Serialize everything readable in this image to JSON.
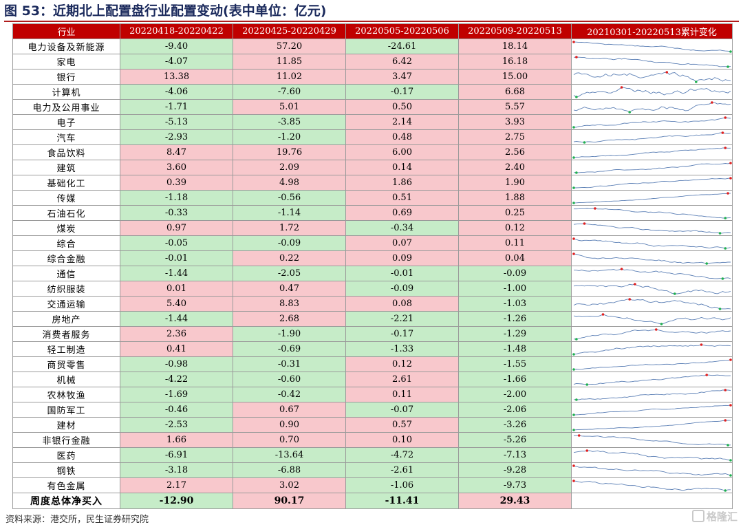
{
  "title": "图 53：近期北上配置盘行业配置变动(表中单位：亿元)",
  "headers": [
    "行业",
    "20220418-20220422",
    "20220425-20220429",
    "20220505-20220506",
    "20220509-20220513",
    "20210301-20220513累计变化"
  ],
  "rows": [
    {
      "name": "电力设备及新能源",
      "values": [
        -9.4,
        57.2,
        -24.61,
        18.14
      ],
      "text": [
        "-9.40",
        "57.20",
        "-24.61",
        "18.14"
      ]
    },
    {
      "name": "家电",
      "values": [
        -4.07,
        11.85,
        6.42,
        16.18
      ],
      "text": [
        "-4.07",
        "11.85",
        "6.42",
        "16.18"
      ]
    },
    {
      "name": "银行",
      "values": [
        13.38,
        11.02,
        3.47,
        15.0
      ],
      "text": [
        "13.38",
        "11.02",
        "3.47",
        "15.00"
      ]
    },
    {
      "name": "计算机",
      "values": [
        -4.06,
        -7.6,
        -0.17,
        6.68
      ],
      "text": [
        "-4.06",
        "-7.60",
        "-0.17",
        "6.68"
      ]
    },
    {
      "name": "电力及公用事业",
      "values": [
        -1.71,
        5.01,
        0.5,
        5.57
      ],
      "text": [
        "-1.71",
        "5.01",
        "0.50",
        "5.57"
      ]
    },
    {
      "name": "电子",
      "values": [
        -5.13,
        -3.85,
        2.14,
        3.93
      ],
      "text": [
        "-5.13",
        "-3.85",
        "2.14",
        "3.93"
      ]
    },
    {
      "name": "汽车",
      "values": [
        -2.93,
        -1.2,
        0.48,
        2.75
      ],
      "text": [
        "-2.93",
        "-1.20",
        "0.48",
        "2.75"
      ]
    },
    {
      "name": "食品饮料",
      "values": [
        8.47,
        19.76,
        6.0,
        2.56
      ],
      "text": [
        "8.47",
        "19.76",
        "6.00",
        "2.56"
      ]
    },
    {
      "name": "建筑",
      "values": [
        3.6,
        2.09,
        0.14,
        2.4
      ],
      "text": [
        "3.60",
        "2.09",
        "0.14",
        "2.40"
      ]
    },
    {
      "name": "基础化工",
      "values": [
        0.39,
        4.98,
        1.86,
        1.9
      ],
      "text": [
        "0.39",
        "4.98",
        "1.86",
        "1.90"
      ]
    },
    {
      "name": "传媒",
      "values": [
        -1.18,
        -0.56,
        0.51,
        1.88
      ],
      "text": [
        "-1.18",
        "-0.56",
        "0.51",
        "1.88"
      ]
    },
    {
      "name": "石油石化",
      "values": [
        -0.33,
        -1.14,
        0.69,
        0.25
      ],
      "text": [
        "-0.33",
        "-1.14",
        "0.69",
        "0.25"
      ]
    },
    {
      "name": "煤炭",
      "values": [
        0.97,
        1.72,
        -0.34,
        0.12
      ],
      "text": [
        "0.97",
        "1.72",
        "-0.34",
        "0.12"
      ]
    },
    {
      "name": "综合",
      "values": [
        -0.05,
        -0.09,
        0.07,
        0.11
      ],
      "text": [
        "-0.05",
        "-0.09",
        "0.07",
        "0.11"
      ]
    },
    {
      "name": "综合金融",
      "values": [
        -0.01,
        0.22,
        0.09,
        0.04
      ],
      "text": [
        "-0.01",
        "0.22",
        "0.09",
        "0.04"
      ]
    },
    {
      "name": "通信",
      "values": [
        -1.44,
        -2.05,
        -0.01,
        -0.09
      ],
      "text": [
        "-1.44",
        "-2.05",
        "-0.01",
        "-0.09"
      ]
    },
    {
      "name": "纺织服装",
      "values": [
        0.01,
        0.47,
        -0.09,
        -1.0
      ],
      "text": [
        "0.01",
        "0.47",
        "-0.09",
        "-1.00"
      ]
    },
    {
      "name": "交通运输",
      "values": [
        5.4,
        8.83,
        0.08,
        -1.03
      ],
      "text": [
        "5.40",
        "8.83",
        "0.08",
        "-1.03"
      ]
    },
    {
      "name": "房地产",
      "values": [
        -1.44,
        2.68,
        -2.21,
        -1.26
      ],
      "text": [
        "-1.44",
        "2.68",
        "-2.21",
        "-1.26"
      ]
    },
    {
      "name": "消费者服务",
      "values": [
        2.36,
        -1.9,
        -0.17,
        -1.29
      ],
      "text": [
        "2.36",
        "-1.90",
        "-0.17",
        "-1.29"
      ]
    },
    {
      "name": "轻工制造",
      "values": [
        0.41,
        -0.69,
        -1.33,
        -1.48
      ],
      "text": [
        "0.41",
        "-0.69",
        "-1.33",
        "-1.48"
      ]
    },
    {
      "name": "商贸零售",
      "values": [
        -0.98,
        -0.31,
        0.12,
        -1.55
      ],
      "text": [
        "-0.98",
        "-0.31",
        "0.12",
        "-1.55"
      ]
    },
    {
      "name": "机械",
      "values": [
        -4.22,
        -0.6,
        2.61,
        -1.66
      ],
      "text": [
        "-4.22",
        "-0.60",
        "2.61",
        "-1.66"
      ]
    },
    {
      "name": "农林牧渔",
      "values": [
        -1.69,
        -0.42,
        0.11,
        -2.0
      ],
      "text": [
        "-1.69",
        "-0.42",
        "0.11",
        "-2.00"
      ]
    },
    {
      "name": "国防军工",
      "values": [
        -0.46,
        0.67,
        -0.07,
        -2.06
      ],
      "text": [
        "-0.46",
        "0.67",
        "-0.07",
        "-2.06"
      ]
    },
    {
      "name": "建材",
      "values": [
        -2.53,
        0.9,
        0.57,
        -3.26
      ],
      "text": [
        "-2.53",
        "0.90",
        "0.57",
        "-3.26"
      ]
    },
    {
      "name": "非银行金融",
      "values": [
        1.66,
        0.7,
        0.1,
        -5.26
      ],
      "text": [
        "1.66",
        "0.70",
        "0.10",
        "-5.26"
      ]
    },
    {
      "name": "医药",
      "values": [
        -6.91,
        -13.64,
        -4.72,
        -7.13
      ],
      "text": [
        "-6.91",
        "-13.64",
        "-4.72",
        "-7.13"
      ]
    },
    {
      "name": "钢铁",
      "values": [
        -3.18,
        -6.88,
        -2.61,
        -9.28
      ],
      "text": [
        "-3.18",
        "-6.88",
        "-2.61",
        "-9.28"
      ]
    },
    {
      "name": "有色金属",
      "values": [
        2.17,
        3.02,
        -1.06,
        -9.73
      ],
      "text": [
        "2.17",
        "3.02",
        "-1.06",
        "-9.73"
      ]
    }
  ],
  "total": {
    "name": "周度总体净买入",
    "values": [
      -12.9,
      90.17,
      -11.41,
      29.43
    ],
    "text": [
      "-12.90",
      "90.17",
      "-11.41",
      "29.43"
    ]
  },
  "colors": {
    "header_bg": "#c00000",
    "positive_cell": "#f8c8cc",
    "negative_cell": "#c6ecc8",
    "sparkline": "#5b7fb5",
    "max_marker": "#e02020",
    "min_marker": "#20b050"
  },
  "source": "资料来源：港交所，民生证券研究院",
  "watermark": "格隆汇"
}
